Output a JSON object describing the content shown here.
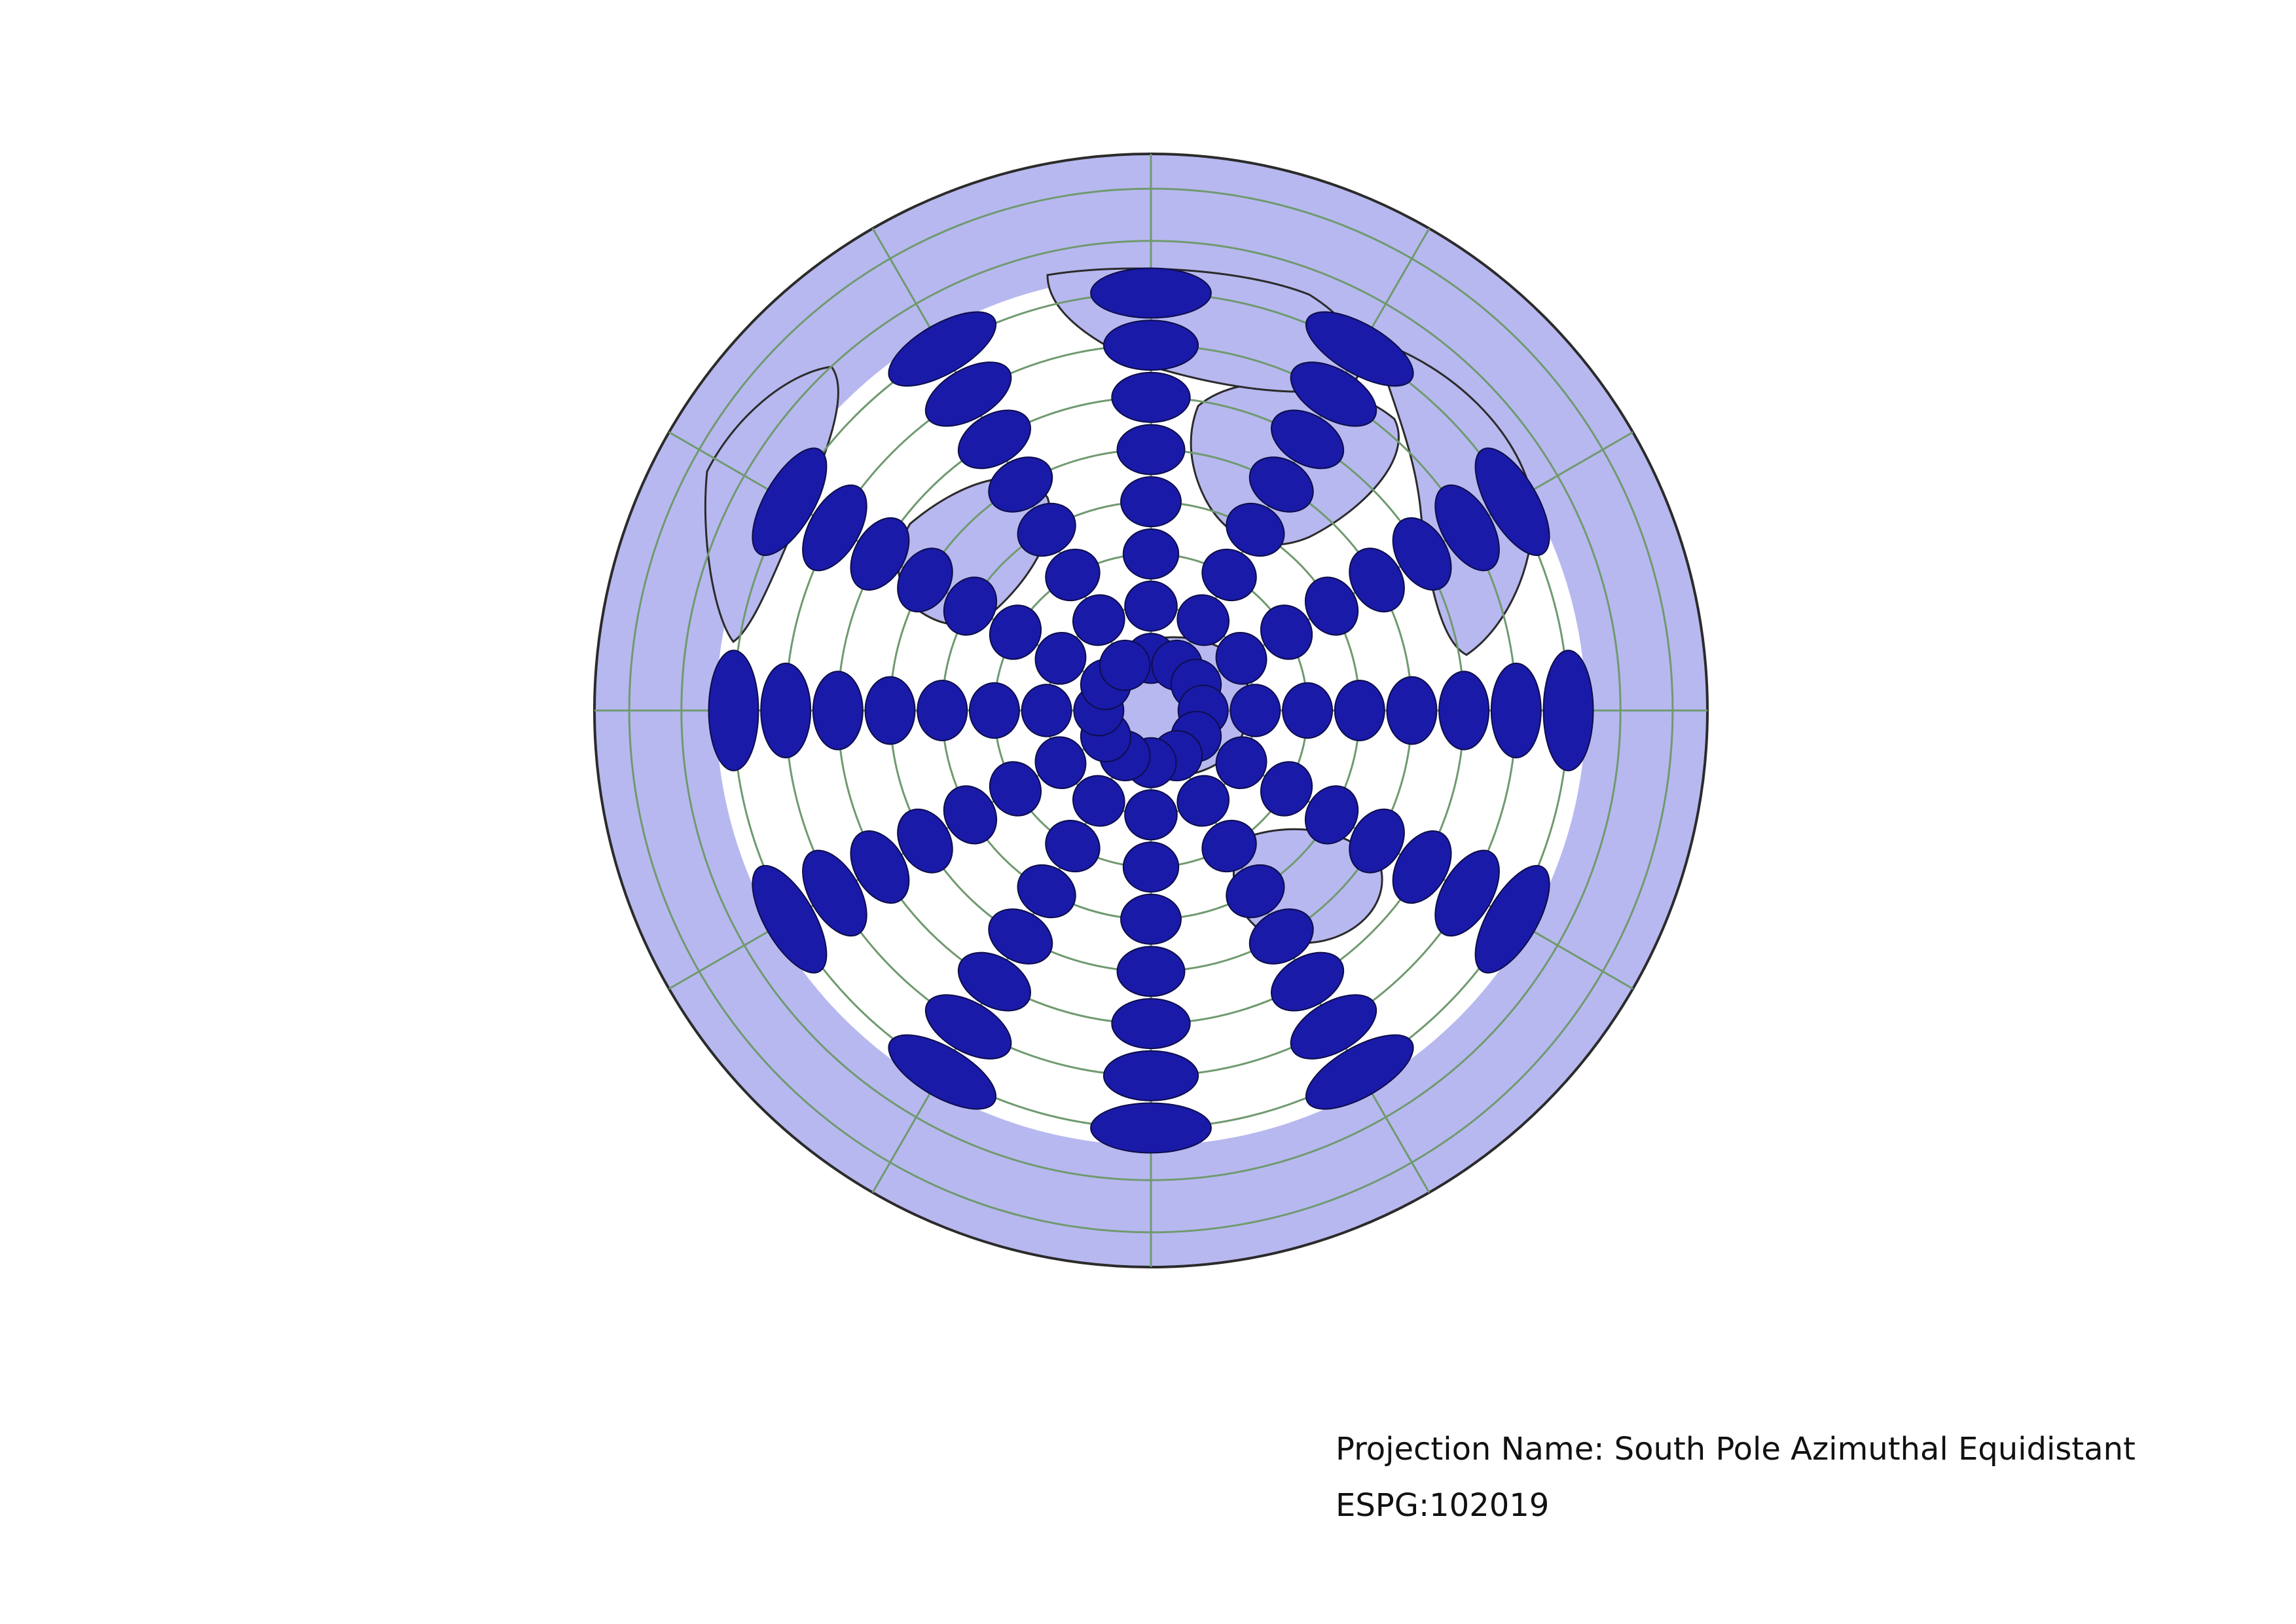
{
  "map": {
    "projection_name_label": "Projection Name:",
    "projection_name": "South Pole Azimuthal Equidistant",
    "code_label": "ESPG:",
    "code": "102019",
    "colors": {
      "ocean": "#ffffff",
      "land": "#b8b8f0",
      "coastline": "#2b2b2b",
      "graticule": "#6f9a6f",
      "indicatrix_fill": "#1a1aa8",
      "indicatrix_stroke": "#0d0d4a"
    },
    "graticule": {
      "parallels_deg": [
        -75,
        -60,
        -45,
        -30,
        -15,
        0,
        15,
        30,
        45,
        60
      ],
      "meridian_spacing_deg": 30
    },
    "tissot_indicatrix": {
      "radius_note": "circles of equal ground radius",
      "latitudes_deg": [
        -75,
        -60,
        -45,
        -30,
        -15,
        0,
        15,
        30
      ],
      "longitudes_deg": [
        0,
        30,
        60,
        90,
        120,
        150,
        180,
        210,
        240,
        270,
        300,
        330
      ],
      "extra_inner_latitude_deg": -75
    }
  }
}
